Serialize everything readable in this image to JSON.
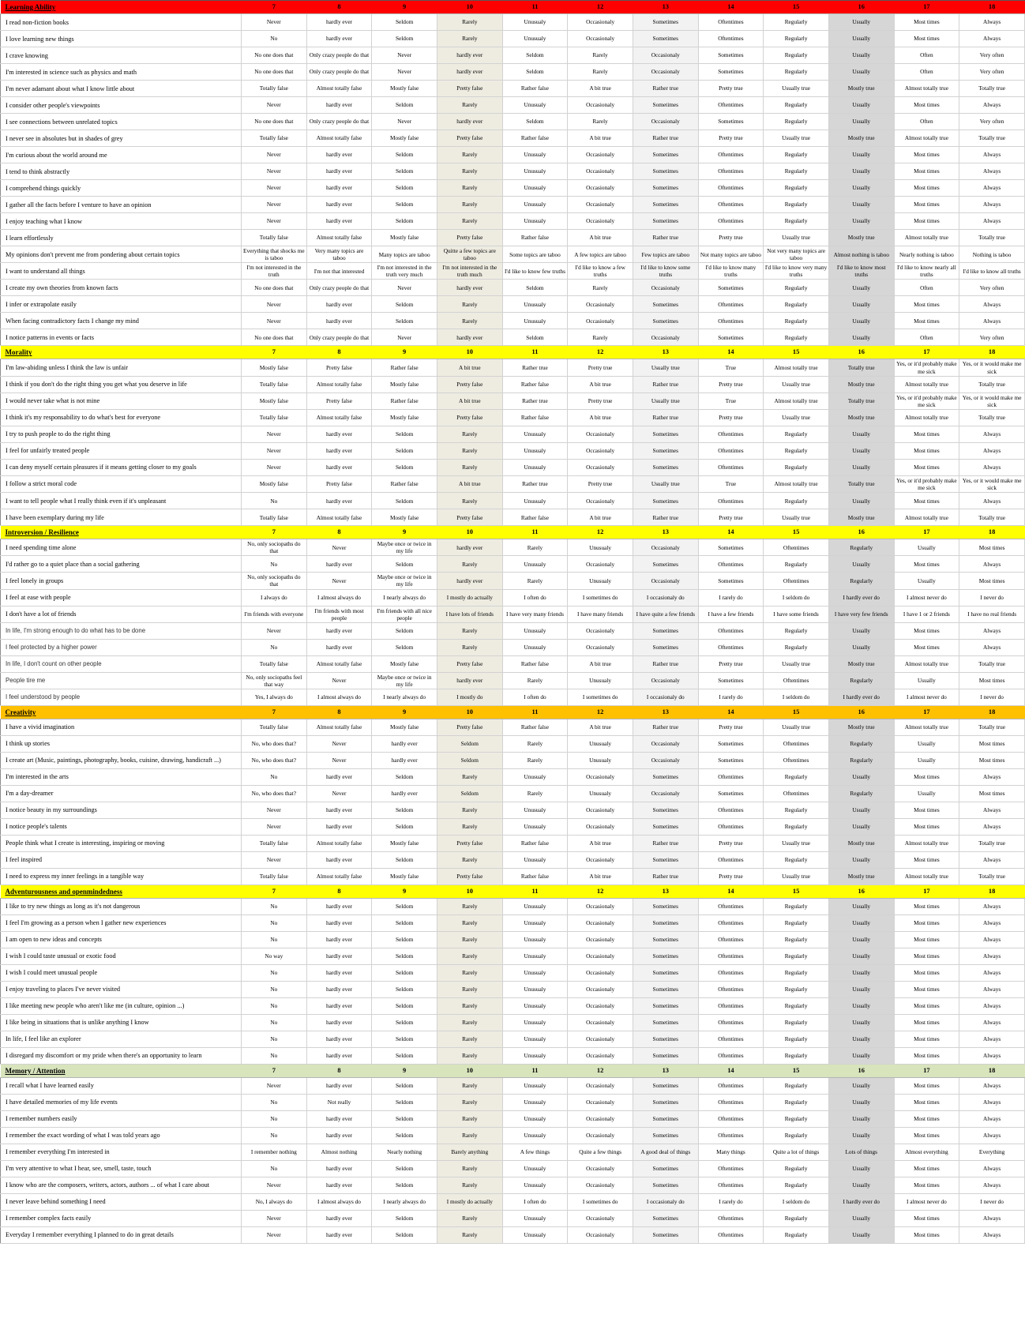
{
  "table": {
    "columns": [
      "7",
      "8",
      "9",
      "10",
      "11",
      "12",
      "13",
      "14",
      "15",
      "16",
      "17",
      "18"
    ],
    "band_columns": {
      "10": "#eeece1",
      "13": "#f2f2f2",
      "16": "#d6d6d6"
    },
    "section_colors": {
      "red": "#ff0000",
      "yellow": "#ffff00",
      "orange": "#ffc000",
      "green": "#d8e4bc"
    },
    "scales": {
      "never": [
        "Never",
        "hardly ever",
        "Seldom",
        "Rarely",
        "Unusualy",
        "Occasionaly",
        "Sometimes",
        "Oftentimes",
        "Regularly",
        "Usually",
        "Most times",
        "Always"
      ],
      "no": [
        "No",
        "hardly ever",
        "Seldom",
        "Rarely",
        "Unusualy",
        "Occasionaly",
        "Sometimes",
        "Oftentimes",
        "Regularly",
        "Usually",
        "Most times",
        "Always"
      ],
      "no_way": [
        "No way",
        "hardly ever",
        "Seldom",
        "Rarely",
        "Unusualy",
        "Occasionaly",
        "Sometimes",
        "Oftentimes",
        "Regularly",
        "Usually",
        "Most times",
        "Always"
      ],
      "not_really": [
        "No",
        "Not really",
        "Seldom",
        "Rarely",
        "Unusualy",
        "Occasionaly",
        "Sometimes",
        "Oftentimes",
        "Regularly",
        "Usually",
        "Most times",
        "Always"
      ],
      "no_one": [
        "No one does that",
        "Only crazy people do that",
        "Never",
        "hardly ever",
        "Seldom",
        "Rarely",
        "Occasionaly",
        "Sometimes",
        "Regularly",
        "Usually",
        "Often",
        "Very often"
      ],
      "totally_false": [
        "Totally false",
        "Almost totally false",
        "Mostly false",
        "Pretty false",
        "Rather false",
        "A bit true",
        "Rather true",
        "Pretty true",
        "Usually true",
        "Mostly true",
        "Almost totally true",
        "Totally true"
      ],
      "mostly_false_sick": [
        "Mostly false",
        "Pretty false",
        "Rather false",
        "A bit true",
        "Rather true",
        "Pretty true",
        "Usually true",
        "True",
        "Almost totally true",
        "Totally true",
        "Yes, or it'd probably make me sick",
        "Yes, or it would make me sick"
      ],
      "taboo": [
        "Everything that shocks me is taboo",
        "Very many topics are taboo",
        "Many topics are taboo",
        "Quitte a few topics are taboo",
        "Some topics are taboo",
        "A few topics are taboo",
        "Few topics are taboo",
        "Not many topics are taboo",
        "Not very many topics are taboo",
        "Almost nothing is taboo",
        "Nearly nothing is taboo",
        "Nothing is taboo"
      ],
      "truth": [
        "I'm not interested in the truth",
        "I'm not that interested",
        "I'm not interested in the truth very much",
        "I'm not interested in the truth much",
        "I'd like to know few truths",
        "I'd like to know a few truths",
        "I'd like to know some truths",
        "I'd like to know many truths",
        "I'd like to know very many truths",
        "I'd like to know most truths",
        "I'd like to know nearly all truths",
        "I'd like to know all truths"
      ],
      "sociopaths_do": [
        "No, only sociopaths do that",
        "Never",
        "Maybe once or twice in my life",
        "hardly ever",
        "Rarely",
        "Unusualy",
        "Occasionaly",
        "Sometimes",
        "Oftentimes",
        "Regularly",
        "Usually",
        "Most times"
      ],
      "sociopaths_feel": [
        "No, only sociopaths feel that way",
        "Never",
        "Maybe once or twice in my life",
        "hardly ever",
        "Rarely",
        "Unusualy",
        "Occasionaly",
        "Sometimes",
        "Oftentimes",
        "Regularly",
        "Usually",
        "Most times"
      ],
      "i_always_do": [
        "I always do",
        "I almost always do",
        "I nearly always do",
        "I mostly do actually",
        "I often do",
        "I sometimes do",
        "I occasionaly do",
        "I rarely do",
        "I seldom do",
        "I hardly ever do",
        "I almost never do",
        "I never do"
      ],
      "yes_i_always_do": [
        "Yes, I always do",
        "I almost always do",
        "I nearly always do",
        "I mostly do",
        "I often do",
        "I sometimes do",
        "I occasionaly do",
        "I rarely do",
        "I seldom do",
        "I hardly ever do",
        "I almost never do",
        "I never do"
      ],
      "no_i_always_do": [
        "No, I always do",
        "I almost always do",
        "I nearly always do",
        "I mostly do actually",
        "I often do",
        "I sometimes do",
        "I occasionaly do",
        "I rarely do",
        "I seldom do",
        "I hardly ever do",
        "I almost never do",
        "I never do"
      ],
      "friends": [
        "I'm friends with everyone",
        "I'm friends with most people",
        "I'm friends with all nice people",
        "I have lots of friends",
        "I have very many friends",
        "I have many friends",
        "I have quite a few friends",
        "I have a few friends",
        "I have some friends",
        "I have very few friends",
        "I have 1 or 2 friends",
        "I have no real friends"
      ],
      "who_does_that": [
        "No, who does that?",
        "Never",
        "hardly ever",
        "Seldom",
        "Rarely",
        "Unusualy",
        "Occasionaly",
        "Sometimes",
        "Oftentimes",
        "Regularly",
        "Usually",
        "Most times"
      ],
      "remember_things": [
        "I remember nothing",
        "Almost nothing",
        "Nearly nothing",
        "Barely anything",
        "A few things",
        "Quite a few things",
        "A good deal of things",
        "Many things",
        "Quite a lot of things",
        "Lots of things",
        "Almost everything",
        "Everything"
      ]
    },
    "sections": [
      {
        "title": "Learning Ability",
        "color": "#ff0000",
        "rows": [
          {
            "q": "I read non-fiction books",
            "scale": "never"
          },
          {
            "q": "I love learning new things",
            "scale": "no"
          },
          {
            "q": "I crave knowing",
            "scale": "no_one"
          },
          {
            "q": "I'm interested in science such as physics and math",
            "scale": "no_one"
          },
          {
            "q": "I'm never adamant about what I know little about",
            "scale": "totally_false"
          },
          {
            "q": "I consider other people's viewpoints",
            "scale": "never"
          },
          {
            "q": "I see connections between unrelated topics",
            "scale": "no_one"
          },
          {
            "q": "I never see in absolutes but in shades of grey",
            "scale": "totally_false"
          },
          {
            "q": "I'm curious about the world around me",
            "scale": "never"
          },
          {
            "q": "I tend to think abstractly",
            "scale": "never"
          },
          {
            "q": "I comprehend things quickly",
            "scale": "never"
          },
          {
            "q": "I gather all the facts before I venture to have an opinion",
            "scale": "never"
          },
          {
            "q": "I enjoy teaching what I know",
            "scale": "never"
          },
          {
            "q": "I learn effortlessly",
            "scale": "totally_false"
          },
          {
            "q": "My opinions don't prevent me from pondering about certain topics",
            "scale": "taboo"
          },
          {
            "q": "I want to understand all things",
            "scale": "truth"
          },
          {
            "q": "I create my own theories from known facts",
            "scale": "no_one"
          },
          {
            "q": "I infer or extrapolate easily",
            "scale": "never"
          },
          {
            "q": "When facing contradictory facts I change my mind",
            "scale": "never"
          },
          {
            "q": "I notice patterns in events or facts",
            "scale": "no_one"
          }
        ]
      },
      {
        "title": "Morality",
        "color": "#ffff00",
        "rows": [
          {
            "q": "I'm law-abiding unless I think the law is unfair",
            "scale": "mostly_false_sick"
          },
          {
            "q": "I think if you don't do the right thing you get what you deserve in life",
            "scale": "totally_false"
          },
          {
            "q": "I would never take what is not mine",
            "scale": "mostly_false_sick"
          },
          {
            "q": "I think it's my responsability to do what's best for everyone",
            "scale": "totally_false"
          },
          {
            "q": "I try to push people to do the right thing",
            "scale": "never"
          },
          {
            "q": "I feel for unfairly treated people",
            "scale": "never"
          },
          {
            "q": "I can deny myself certain pleasures if it means getting closer to my goals",
            "scale": "never"
          },
          {
            "q": "I follow a strict moral code",
            "scale": "mostly_false_sick"
          },
          {
            "q": "I want to tell people what I really think even if it's unpleasant",
            "scale": "no"
          },
          {
            "q": "I have been exemplary during my life",
            "scale": "totally_false"
          }
        ]
      },
      {
        "title": "Introversion / Resilience",
        "color": "#ffff00",
        "rows": [
          {
            "q": "I need spending time alone",
            "scale": "sociopaths_do"
          },
          {
            "q": "I'd rather go to a quiet place than a social gathering",
            "scale": "no"
          },
          {
            "q": "I feel lonely in groups",
            "scale": "sociopaths_do"
          },
          {
            "q": "I feel at ease with people",
            "scale": "i_always_do"
          },
          {
            "q": "I don't have a lot of friends",
            "scale": "friends"
          },
          {
            "q": "In life, I'm strong enough to do what has to be done",
            "scale": "never",
            "sans": true
          },
          {
            "q": "I feel protected by a higher power",
            "scale": "no",
            "sans": true
          },
          {
            "q": "In life, I don't count on other people",
            "scale": "totally_false",
            "sans": true
          },
          {
            "q": "People tire me",
            "scale": "sociopaths_feel",
            "sans": true
          },
          {
            "q": "I feel understood by people",
            "scale": "yes_i_always_do",
            "sans": true
          }
        ]
      },
      {
        "title": "Creativity",
        "color": "#ffc000",
        "rows": [
          {
            "q": "I have a vivid imagination",
            "scale": "totally_false"
          },
          {
            "q": "I think up stories",
            "scale": "who_does_that"
          },
          {
            "q": "I create art (Music, paintings, photography, books, cuisine, drawing, handicraft ...)",
            "scale": "who_does_that"
          },
          {
            "q": "I'm interested in the arts",
            "scale": "no"
          },
          {
            "q": "I'm a day-dreamer",
            "scale": "who_does_that"
          },
          {
            "q": "I notice beauty in my surroundings",
            "scale": "never"
          },
          {
            "q": "I notice people's talents",
            "scale": "never"
          },
          {
            "q": "People think what I create is interesting, inspiring or moving",
            "scale": "totally_false"
          },
          {
            "q": "I feel inspired",
            "scale": "never"
          },
          {
            "q": "I need to express my inner feelings in a tangible way",
            "scale": "totally_false"
          }
        ]
      },
      {
        "title": "Adventurousness and openmindedness",
        "color": "#ffff00",
        "rows": [
          {
            "q": "I like to try new things as long as it's not dangerous",
            "scale": "no"
          },
          {
            "q": "I feel I'm growing as a person when I gather new experiences",
            "scale": "no"
          },
          {
            "q": "I am open to new ideas and concepts",
            "scale": "no"
          },
          {
            "q": "I wish I could taste unusual or exotic food",
            "scale": "no_way"
          },
          {
            "q": "I wish I could meet unusual people",
            "scale": "no"
          },
          {
            "q": "I enjoy traveling to places I've never visited",
            "scale": "no"
          },
          {
            "q": "I like meeting new people who aren't like me (in culture, opinion ...)",
            "scale": "no"
          },
          {
            "q": "I like being in situations that is unlike anything I know",
            "scale": "no"
          },
          {
            "q": "In life, I feel like an explorer",
            "scale": "no"
          },
          {
            "q": "I disregard my discomfort or my pride when there's an opportunity to learn",
            "scale": "no"
          }
        ]
      },
      {
        "title": "Memory / Attention",
        "color": "#d8e4bc",
        "rows": [
          {
            "q": "I recall what I have learned easily",
            "scale": "never"
          },
          {
            "q": "I have detailed memories of my life events",
            "scale": "not_really"
          },
          {
            "q": "I remember numbers easily",
            "scale": "no"
          },
          {
            "q": "I remember the exact wording of what I was told years ago",
            "scale": "no"
          },
          {
            "q": "I remember everything I'm interested in",
            "scale": "remember_things"
          },
          {
            "q": "I'm very attentive to what I hear, see, smell, taste, touch",
            "scale": "no"
          },
          {
            "q": "I know who are the composers, writers, actors, authors ... of what I care about",
            "scale": "never"
          },
          {
            "q": "I never leave behind something I need",
            "scale": "no_i_always_do"
          },
          {
            "q": "I remember complex facts easily",
            "scale": "never"
          },
          {
            "q": "Everyday I remember everything I planned to do in great details",
            "scale": "never"
          }
        ]
      }
    ]
  }
}
